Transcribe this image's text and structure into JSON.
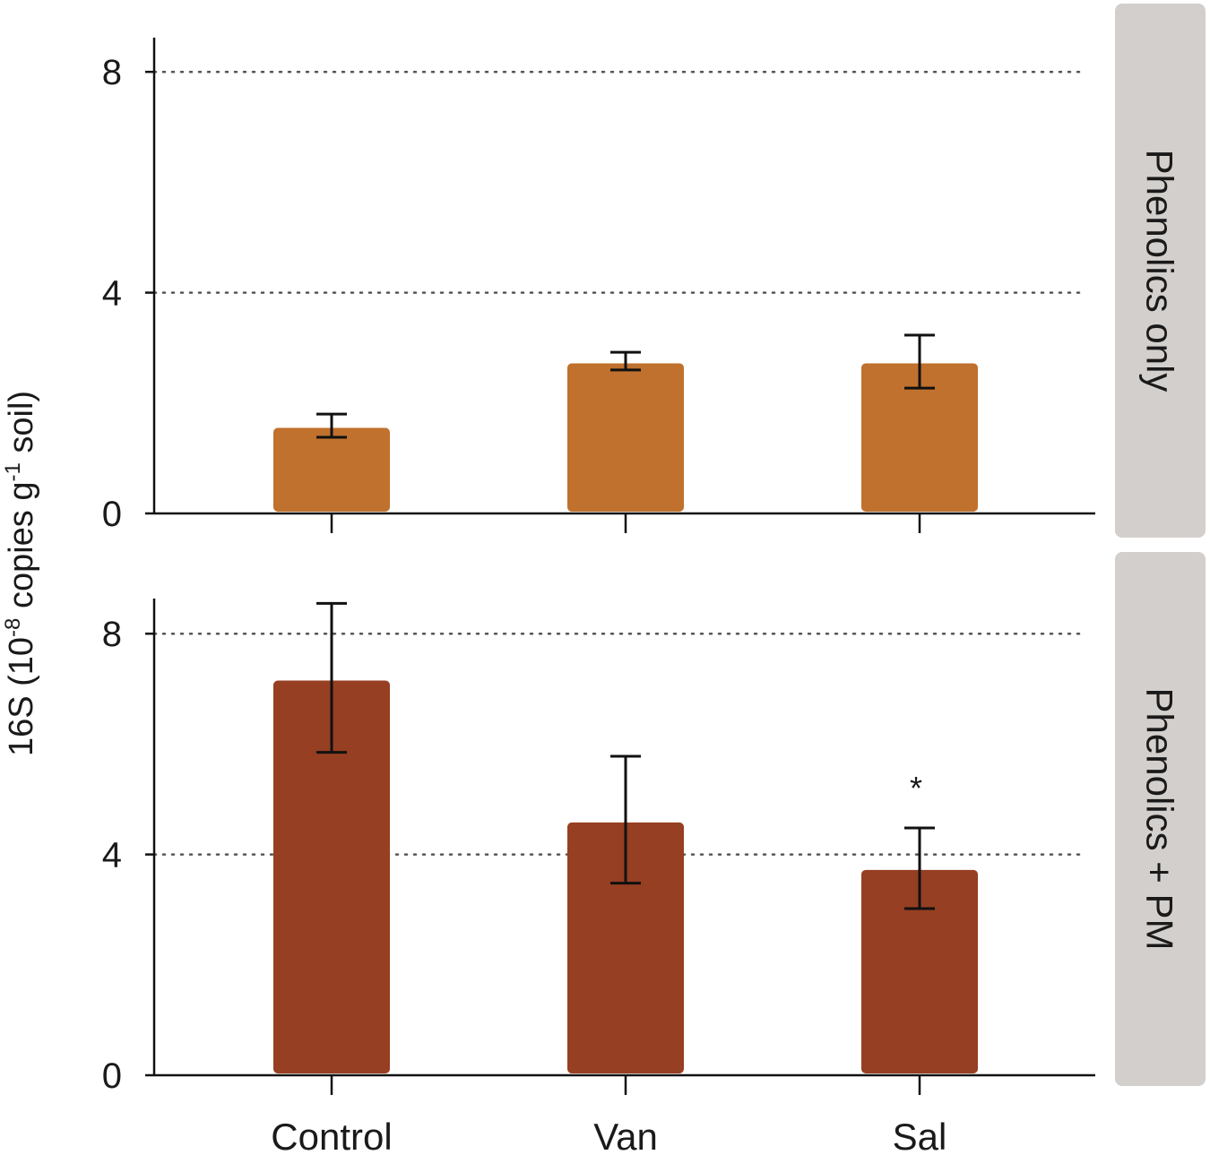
{
  "chart_data": {
    "type": "bar",
    "ylabel": {
      "prefix": "16S (10",
      "exp1": "-8",
      "middle": " copies g",
      "exp2": "-1",
      "suffix": " soil)"
    },
    "categories": [
      "Control",
      "Van",
      "Sal"
    ],
    "ylim": [
      0,
      8.6
    ],
    "yticks": [
      "0",
      "4",
      "8"
    ],
    "gridlines": [
      4,
      8
    ],
    "panels": [
      {
        "strip": "Phenolics only",
        "color": "#c0712d",
        "values": [
          1.55,
          2.72,
          2.72
        ],
        "errors": [
          {
            "low": 1.38,
            "high": 1.8
          },
          {
            "low": 2.6,
            "high": 2.92
          },
          {
            "low": 2.27,
            "high": 3.23
          }
        ],
        "annotations": [
          "",
          "",
          ""
        ]
      },
      {
        "strip": "Phenolics + PM",
        "color": "#963f22",
        "values": [
          7.15,
          4.58,
          3.72
        ],
        "errors": [
          {
            "low": 5.85,
            "high": 8.55
          },
          {
            "low": 3.48,
            "high": 5.78
          },
          {
            "low": 3.02,
            "high": 4.48
          }
        ],
        "annotations": [
          "",
          "",
          "*"
        ]
      }
    ],
    "strip_color": "#d3cfcc"
  }
}
